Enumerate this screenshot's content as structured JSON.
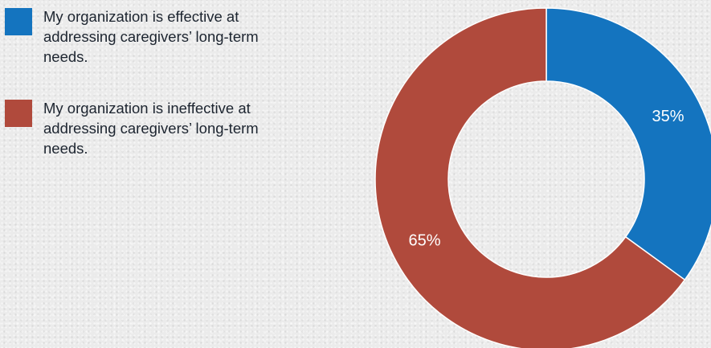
{
  "chart_data": {
    "type": "pie",
    "donut": true,
    "title": "",
    "legend_position": "left",
    "slices": [
      {
        "label": "My organization is effective at addressing caregivers’ long-term needs.",
        "value": 35,
        "display": "35%",
        "color": "#1474bf"
      },
      {
        "label": "My organization is ineffective at addressing caregivers’ long-term needs.",
        "value": 65,
        "display": "65%",
        "color": "#b04a3c"
      }
    ]
  }
}
